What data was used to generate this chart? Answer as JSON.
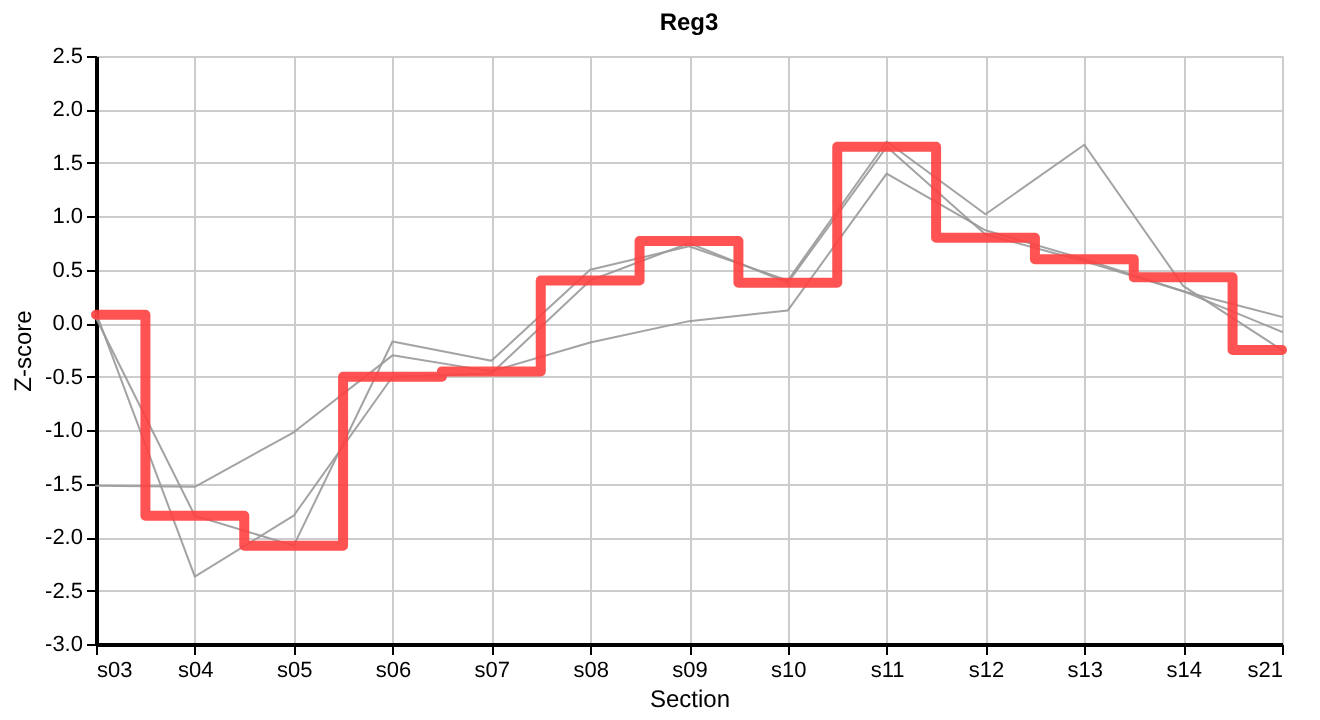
{
  "chart_data": {
    "type": "line",
    "title": "Reg3",
    "xlabel": "Section",
    "ylabel": "Z-score",
    "categories": [
      "s03",
      "s04",
      "s05",
      "s06",
      "s07",
      "s08",
      "s09",
      "s10",
      "s11",
      "s12",
      "s13",
      "s14",
      "s21"
    ],
    "ylim": [
      -3.0,
      2.5
    ],
    "yticks": [
      {
        "value": -3,
        "label": "-3.0"
      },
      -2.5,
      {
        "value": -2,
        "label": "-2.0"
      },
      -1.5,
      {
        "value": -1,
        "label": "-1.0"
      },
      -0.5,
      {
        "value": 0,
        "label": "0.0"
      },
      0.5,
      {
        "value": 1,
        "label": "1.0"
      },
      1.5,
      {
        "value": 2,
        "label": "2.0"
      },
      2.5
    ],
    "grid": true,
    "marker": "none",
    "line_style": "solid",
    "series": [
      {
        "color": "#999999",
        "values": [
          -1.52,
          -1.53,
          -1.02,
          -0.3,
          -0.45,
          -0.18,
          0.02,
          0.12,
          1.4,
          0.87,
          0.6,
          0.3,
          0.06
        ]
      },
      {
        "color": "#999999",
        "values": [
          0.05,
          -1.8,
          -2.08,
          -0.17,
          -0.35,
          0.5,
          0.72,
          0.4,
          1.7,
          1.02,
          1.67,
          0.35,
          -0.25
        ]
      },
      {
        "color": "#999999",
        "values": [
          0.1,
          -2.37,
          -1.8,
          -0.5,
          -0.47,
          0.4,
          0.75,
          0.38,
          1.65,
          0.83,
          0.58,
          0.3,
          -0.08
        ]
      },
      {
        "type": "step",
        "color": "#ff4040",
        "values": [
          0.08,
          -1.8,
          -2.08,
          -0.5,
          -0.45,
          0.4,
          0.77,
          0.38,
          1.65,
          0.8,
          0.6,
          0.43,
          -0.25
        ]
      }
    ]
  }
}
